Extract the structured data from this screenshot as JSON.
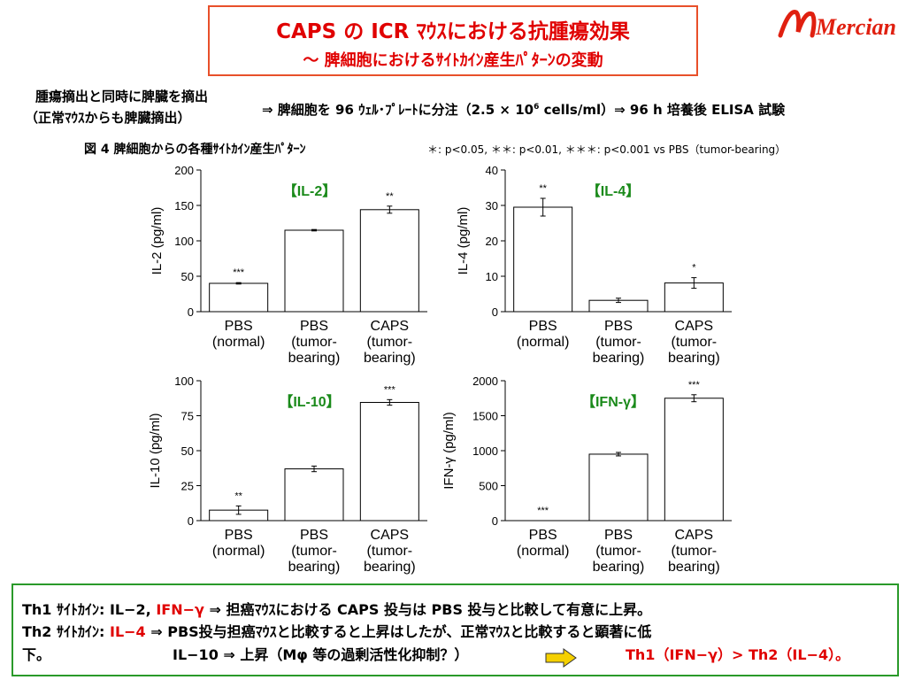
{
  "header": {
    "title_line1": "CAPS の ICR ﾏｳｽにおける抗腫瘍効果",
    "title_line2": "～ 脾細胞におけるｻｲﾄｶｲﾝ産生ﾊﾟﾀｰﾝの変動",
    "logo_text": "Mercian",
    "accent_color": "#e00000",
    "logo_color": "#e02010"
  },
  "method": {
    "line1": "腫瘍摘出と同時に脾臓を摘出",
    "line2": "（正常ﾏｳｽからも脾臓摘出）",
    "line3_prefix": "⇒ 脾細胞を 96 ｳｪﾙ･ﾌﾟﾚｰﾄに分注（2.5 × 10",
    "line3_sup": "6",
    "line3_suffix": " cells/ml）⇒ 96 h 培養後 ELISA 試験"
  },
  "figure": {
    "caption": "図 4  脾細胞からの各種ｻｲﾄｶｲﾝ産生ﾊﾟﾀｰﾝ",
    "significance_note": "＊: p<0.05, ＊＊: p<0.01, ＊＊＊: p<0.001 vs PBS（tumor-bearing）"
  },
  "chart_data": [
    {
      "type": "bar",
      "title": "【IL-2】",
      "ylabel": "IL-2 (pg/ml)",
      "ylim": [
        0,
        200
      ],
      "yticks": [
        0,
        50,
        100,
        150,
        200
      ],
      "categories": [
        [
          "PBS",
          "(normal)"
        ],
        [
          "PBS",
          "(tumor-",
          "bearing)"
        ],
        [
          "CAPS",
          "(tumor-",
          "bearing)"
        ]
      ],
      "values": [
        40,
        115,
        144
      ],
      "errors": [
        1,
        1,
        5
      ],
      "significance": [
        "***",
        "",
        "**"
      ]
    },
    {
      "type": "bar",
      "title": "【IL-4】",
      "ylabel": "IL-4 (pg/ml)",
      "ylim": [
        0,
        40
      ],
      "yticks": [
        0,
        10,
        20,
        30,
        40
      ],
      "categories": [
        [
          "PBS",
          "(normal)"
        ],
        [
          "PBS",
          "(tumor-",
          "bearing)"
        ],
        [
          "CAPS",
          "(tumor-",
          "bearing)"
        ]
      ],
      "values": [
        29.5,
        3.2,
        8.1
      ],
      "errors": [
        2.5,
        0.6,
        1.5
      ],
      "significance": [
        "**",
        "",
        "*"
      ]
    },
    {
      "type": "bar",
      "title": "【IL-10】",
      "ylabel": "IL-10 (pg/ml)",
      "ylim": [
        0,
        100
      ],
      "yticks": [
        0,
        25,
        50,
        75,
        100
      ],
      "categories": [
        [
          "PBS",
          "(normal)"
        ],
        [
          "PBS",
          "(tumor-",
          "bearing)"
        ],
        [
          "CAPS",
          "(tumor-",
          "bearing)"
        ]
      ],
      "values": [
        7.5,
        37,
        84.5
      ],
      "errors": [
        3,
        2,
        2
      ],
      "significance": [
        "**",
        "",
        "***"
      ]
    },
    {
      "type": "bar",
      "title": "【IFN-γ】",
      "ylabel": "IFN-γ (pg/ml)",
      "ylim": [
        0,
        2000
      ],
      "yticks": [
        0,
        500,
        1000,
        1500,
        2000
      ],
      "categories": [
        [
          "PBS",
          "(normal)"
        ],
        [
          "PBS",
          "(tumor-",
          "bearing)"
        ],
        [
          "CAPS",
          "(tumor-",
          "bearing)"
        ]
      ],
      "values": [
        0,
        950,
        1750
      ],
      "errors": [
        0,
        25,
        50
      ],
      "significance": [
        "***",
        "",
        "***"
      ]
    }
  ],
  "conclusion": {
    "line1_a": "Th1 ｻｲﾄｶｲﾝ: IL−2, ",
    "line1_b": "IFN−γ",
    "line1_c": " ⇒ 担癌ﾏｳｽにおける CAPS 投与は PBS 投与と比較して有意に上昇。",
    "line2_a": "Th2 ｻｲﾄｶｲﾝ: ",
    "line2_b": "IL−4",
    "line2_c": " ⇒ PBS投与担癌ﾏｳｽと比較すると上昇はしたが、正常ﾏｳｽと比較すると顕著に低",
    "line3_a": "下。",
    "line3_b": "IL−10 ⇒ 上昇（Mφ 等の過剰活性化抑制？）",
    "line3_c": "Th1（IFN−γ）> Th2（IL−4）",
    "line3_d": "。",
    "arrow_icon": "right-arrow-icon",
    "arrow_color": "#f5d000"
  }
}
